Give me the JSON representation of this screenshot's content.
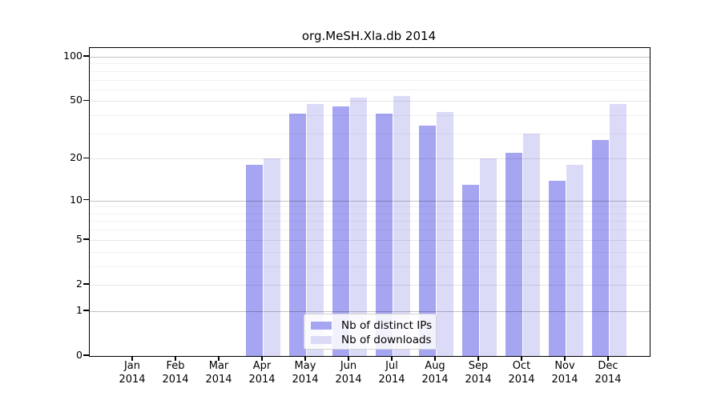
{
  "chart_data": {
    "type": "bar",
    "title": "org.MeSH.Xla.db 2014",
    "categories": [
      "Jan",
      "Feb",
      "Mar",
      "Apr",
      "May",
      "Jun",
      "Jul",
      "Aug",
      "Sep",
      "Oct",
      "Nov",
      "Dec"
    ],
    "year_label": "2014",
    "series": [
      {
        "name": "Nb of distinct IPs",
        "color": "#a5a5f2",
        "values": [
          0,
          0,
          0,
          18,
          41,
          46,
          41,
          34,
          13,
          22,
          14,
          27
        ]
      },
      {
        "name": "Nb of downloads",
        "color": "#dbdbf8",
        "values": [
          0,
          0,
          0,
          20,
          48,
          53,
          54,
          42,
          20,
          30,
          18,
          48
        ]
      }
    ],
    "yscale": "log1p",
    "ylim": [
      0,
      115
    ],
    "yticks": [
      0,
      1,
      2,
      5,
      10,
      20,
      50,
      100
    ],
    "decade_ticks": [
      1,
      10,
      100
    ],
    "minor_gridlines": [
      3,
      4,
      6,
      7,
      8,
      9,
      30,
      40,
      60,
      70,
      80,
      90
    ],
    "grid": true,
    "legend_position": "inside-bottom-center",
    "xlabel": "",
    "ylabel": ""
  }
}
